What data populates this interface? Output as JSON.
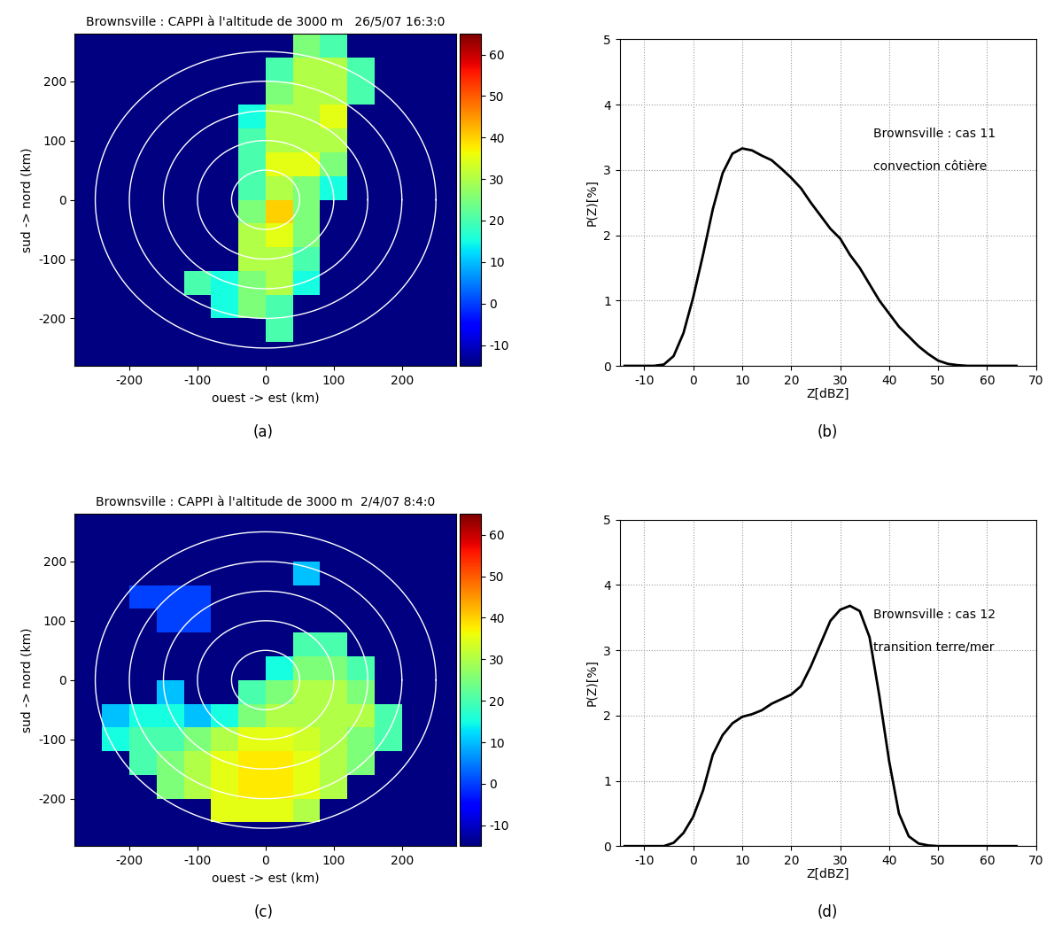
{
  "chart_data": [
    {
      "type": "heatmap",
      "panel_label": "(a)",
      "title": "Brownsville : CAPPI à l'altitude de 3000 m   26/5/07 16:3:0",
      "x_label": "ouest -> est (km)",
      "y_label": "sud -> nord (km)",
      "xlim": [
        -280,
        280
      ],
      "ylim": [
        -280,
        280
      ],
      "xticks": [
        -200,
        -100,
        0,
        100,
        200
      ],
      "yticks": [
        -200,
        -100,
        0,
        100,
        200
      ],
      "range_rings": [
        50,
        100,
        150,
        200,
        250
      ],
      "colorbar_range": [
        -15,
        65
      ],
      "colorbar_ticks": [
        -10,
        0,
        10,
        20,
        30,
        40,
        50,
        60
      ],
      "x_edges": [
        -280,
        -240,
        -200,
        -160,
        -120,
        -80,
        -40,
        0,
        40,
        80,
        120,
        160,
        200,
        240,
        280
      ],
      "y_edges": [
        -280,
        -240,
        -200,
        -160,
        -120,
        -80,
        -40,
        0,
        40,
        80,
        120,
        160,
        200,
        240,
        280
      ],
      "cells": [
        [
          null,
          null,
          null,
          null,
          null,
          null,
          null,
          null,
          null,
          null,
          null,
          null,
          null,
          null
        ],
        [
          null,
          null,
          null,
          null,
          null,
          null,
          null,
          20,
          null,
          null,
          null,
          null,
          null,
          null
        ],
        [
          null,
          null,
          null,
          null,
          null,
          15,
          25,
          20,
          null,
          null,
          null,
          null,
          null,
          null
        ],
        [
          null,
          null,
          null,
          null,
          20,
          15,
          25,
          30,
          15,
          null,
          null,
          null,
          null,
          null
        ],
        [
          null,
          null,
          null,
          null,
          null,
          null,
          30,
          30,
          20,
          null,
          null,
          null,
          null,
          null
        ],
        [
          null,
          null,
          null,
          null,
          null,
          null,
          30,
          35,
          25,
          null,
          null,
          null,
          null,
          null
        ],
        [
          null,
          null,
          null,
          null,
          null,
          null,
          25,
          40,
          25,
          null,
          null,
          null,
          null,
          null
        ],
        [
          null,
          null,
          null,
          null,
          null,
          null,
          20,
          30,
          25,
          15,
          null,
          null,
          null,
          null
        ],
        [
          null,
          null,
          null,
          null,
          null,
          null,
          20,
          35,
          35,
          25,
          null,
          null,
          null,
          null
        ],
        [
          null,
          null,
          null,
          null,
          null,
          null,
          20,
          30,
          30,
          30,
          null,
          null,
          null,
          null
        ],
        [
          null,
          null,
          null,
          null,
          null,
          null,
          15,
          30,
          30,
          35,
          null,
          null,
          null,
          null
        ],
        [
          null,
          null,
          null,
          null,
          null,
          null,
          null,
          25,
          30,
          30,
          20,
          null,
          null,
          null
        ],
        [
          null,
          null,
          null,
          null,
          null,
          null,
          null,
          20,
          30,
          30,
          20,
          null,
          null,
          null
        ],
        [
          null,
          null,
          null,
          null,
          null,
          null,
          null,
          null,
          25,
          20,
          null,
          null,
          null,
          null
        ]
      ]
    },
    {
      "type": "line",
      "panel_label": "(b)",
      "x_label": "Z[dBZ]",
      "y_label": "P(Z)[%]",
      "xlim": [
        -15,
        70
      ],
      "ylim": [
        0,
        5
      ],
      "xticks": [
        -10,
        0,
        10,
        20,
        30,
        40,
        50,
        60,
        70
      ],
      "yticks": [
        0,
        1,
        2,
        3,
        4,
        5
      ],
      "grid": true,
      "annotations": [
        "Brownsville : cas 11",
        "convection côtière"
      ],
      "x": [
        -14,
        -12,
        -10,
        -8,
        -6,
        -4,
        -2,
        0,
        2,
        4,
        6,
        8,
        10,
        12,
        14,
        16,
        18,
        20,
        22,
        24,
        26,
        28,
        30,
        32,
        34,
        36,
        38,
        40,
        42,
        44,
        46,
        48,
        50,
        52,
        54,
        56,
        58,
        60,
        62,
        64,
        66
      ],
      "series": [
        {
          "color": "#000000",
          "values": [
            0,
            0,
            0,
            0,
            0.02,
            0.15,
            0.5,
            1.05,
            1.7,
            2.4,
            2.95,
            3.25,
            3.33,
            3.3,
            3.22,
            3.15,
            3.02,
            2.88,
            2.72,
            2.5,
            2.3,
            2.1,
            1.95,
            1.7,
            1.5,
            1.25,
            1.0,
            0.8,
            0.6,
            0.45,
            0.3,
            0.18,
            0.08,
            0.03,
            0.01,
            0,
            0,
            0,
            0,
            0,
            0
          ]
        }
      ]
    },
    {
      "type": "heatmap",
      "panel_label": "(c)",
      "title": "Brownsville : CAPPI à l'altitude de 3000 m  2/4/07 8:4:0",
      "x_label": "ouest -> est (km)",
      "y_label": "sud -> nord (km)",
      "xlim": [
        -280,
        280
      ],
      "ylim": [
        -280,
        280
      ],
      "xticks": [
        -200,
        -100,
        0,
        100,
        200
      ],
      "yticks": [
        -200,
        -100,
        0,
        100,
        200
      ],
      "range_rings": [
        50,
        100,
        150,
        200,
        250
      ],
      "colorbar_range": [
        -15,
        65
      ],
      "colorbar_ticks": [
        -10,
        0,
        10,
        20,
        30,
        40,
        50,
        60
      ],
      "x_edges": [
        -280,
        -240,
        -200,
        -160,
        -120,
        -80,
        -40,
        0,
        40,
        80,
        120,
        160,
        200,
        240,
        280
      ],
      "y_edges": [
        -280,
        -240,
        -200,
        -160,
        -120,
        -80,
        -40,
        0,
        40,
        80,
        120,
        160,
        200,
        240,
        280
      ],
      "cells": [
        [
          null,
          null,
          null,
          null,
          null,
          null,
          null,
          null,
          null,
          null,
          null,
          null,
          null,
          null
        ],
        [
          null,
          null,
          null,
          null,
          null,
          35,
          35,
          35,
          30,
          null,
          null,
          null,
          null,
          null
        ],
        [
          null,
          null,
          null,
          25,
          30,
          35,
          38,
          38,
          35,
          30,
          null,
          null,
          null,
          null
        ],
        [
          null,
          null,
          20,
          25,
          30,
          35,
          38,
          38,
          35,
          30,
          25,
          null,
          null,
          null
        ],
        [
          null,
          15,
          20,
          20,
          25,
          30,
          35,
          35,
          33,
          30,
          25,
          20,
          null,
          null
        ],
        [
          null,
          10,
          15,
          15,
          10,
          15,
          25,
          30,
          30,
          30,
          30,
          20,
          null,
          null
        ],
        [
          null,
          null,
          null,
          10,
          null,
          null,
          20,
          25,
          30,
          30,
          25,
          null,
          null,
          null
        ],
        [
          null,
          null,
          null,
          null,
          null,
          null,
          null,
          15,
          25,
          25,
          20,
          null,
          null,
          null
        ],
        [
          null,
          null,
          null,
          null,
          null,
          null,
          null,
          null,
          20,
          20,
          null,
          null,
          null,
          null
        ],
        [
          null,
          null,
          null,
          0,
          0,
          null,
          null,
          null,
          null,
          null,
          null,
          null,
          null,
          null
        ],
        [
          null,
          null,
          0,
          0,
          0,
          null,
          null,
          null,
          null,
          null,
          null,
          null,
          null,
          null
        ],
        [
          null,
          null,
          null,
          null,
          null,
          null,
          null,
          null,
          10,
          null,
          null,
          null,
          null,
          null
        ],
        [
          null,
          null,
          null,
          null,
          null,
          null,
          null,
          null,
          null,
          null,
          null,
          null,
          null,
          null
        ],
        [
          null,
          null,
          null,
          null,
          null,
          null,
          null,
          null,
          null,
          null,
          null,
          null,
          null,
          null
        ]
      ]
    },
    {
      "type": "line",
      "panel_label": "(d)",
      "x_label": "Z[dBZ]",
      "y_label": "P(Z)[%]",
      "xlim": [
        -15,
        70
      ],
      "ylim": [
        0,
        5
      ],
      "xticks": [
        -10,
        0,
        10,
        20,
        30,
        40,
        50,
        60,
        70
      ],
      "yticks": [
        0,
        1,
        2,
        3,
        4,
        5
      ],
      "grid": true,
      "annotations": [
        "Brownsville : cas 12",
        "transition terre/mer"
      ],
      "x": [
        -14,
        -12,
        -10,
        -8,
        -6,
        -4,
        -2,
        0,
        2,
        4,
        6,
        8,
        10,
        12,
        14,
        16,
        18,
        20,
        22,
        24,
        26,
        28,
        30,
        32,
        34,
        36,
        38,
        40,
        42,
        44,
        46,
        48,
        50,
        52,
        54,
        56,
        58,
        60,
        62,
        64,
        66
      ],
      "series": [
        {
          "color": "#000000",
          "values": [
            0,
            0,
            0,
            0,
            0,
            0.05,
            0.2,
            0.45,
            0.85,
            1.4,
            1.7,
            1.88,
            1.98,
            2.02,
            2.08,
            2.18,
            2.25,
            2.32,
            2.45,
            2.75,
            3.1,
            3.45,
            3.62,
            3.68,
            3.6,
            3.2,
            2.3,
            1.3,
            0.5,
            0.15,
            0.04,
            0.01,
            0,
            0,
            0,
            0,
            0,
            0,
            0,
            0,
            0
          ]
        }
      ]
    }
  ]
}
